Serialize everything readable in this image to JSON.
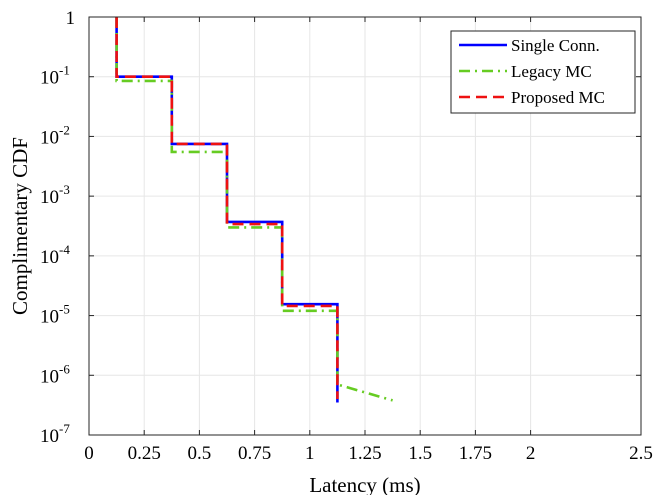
{
  "chart_data": {
    "type": "line",
    "title": "",
    "xlabel": "Latency (ms)",
    "ylabel": "Complimentary CDF",
    "xlim": [
      0,
      2.5
    ],
    "ylim": [
      1e-07,
      1
    ],
    "yscale": "log",
    "grid": true,
    "legend_position": "top-right",
    "x_ticks": [
      0,
      0.25,
      0.5,
      0.75,
      1,
      1.25,
      1.5,
      1.75,
      2,
      2.5
    ],
    "x_tick_labels": [
      "0",
      "0.25",
      "0.5",
      "0.75",
      "1",
      "1.25",
      "1.5",
      "1.75",
      "2",
      "2.5"
    ],
    "y_ticks": [
      {
        "value": 1e-07,
        "base": "10",
        "exp": "-7"
      },
      {
        "value": 1e-06,
        "base": "10",
        "exp": "-6"
      },
      {
        "value": 1e-05,
        "base": "10",
        "exp": "-5"
      },
      {
        "value": 0.0001,
        "base": "10",
        "exp": "-4"
      },
      {
        "value": 0.001,
        "base": "10",
        "exp": "-3"
      },
      {
        "value": 0.01,
        "base": "10",
        "exp": "-2"
      },
      {
        "value": 0.1,
        "base": "10",
        "exp": "-1"
      },
      {
        "value": 1,
        "base": "1",
        "exp": ""
      }
    ],
    "series": [
      {
        "name": "Single Conn.",
        "color": "#0000ff",
        "dash": "solid",
        "x": [
          0.125,
          0.125,
          0.375,
          0.375,
          0.625,
          0.625,
          0.875,
          0.875,
          1.125,
          1.125
        ],
        "y": [
          1,
          0.1,
          0.1,
          0.0075,
          0.0075,
          0.00037,
          0.00037,
          1.55e-05,
          1.55e-05,
          3.5e-07
        ]
      },
      {
        "name": "Legacy MC",
        "color": "#66cc22",
        "dash": "dashdot",
        "x": [
          0.125,
          0.125,
          0.375,
          0.375,
          0.625,
          0.625,
          0.875,
          0.875,
          1.125,
          1.125,
          1.375
        ],
        "y": [
          1,
          0.085,
          0.085,
          0.0055,
          0.0055,
          0.0003,
          0.0003,
          1.2e-05,
          1.2e-05,
          7e-07,
          3.8e-07
        ]
      },
      {
        "name": "Proposed MC",
        "color": "#ee1111",
        "dash": "dashed",
        "x": [
          0.125,
          0.125,
          0.375,
          0.375,
          0.625,
          0.625,
          0.875,
          0.875,
          1.125,
          1.125
        ],
        "y": [
          1,
          0.1,
          0.1,
          0.0075,
          0.0075,
          0.00034,
          0.00034,
          1.45e-05,
          1.45e-05,
          4e-07
        ]
      }
    ]
  }
}
